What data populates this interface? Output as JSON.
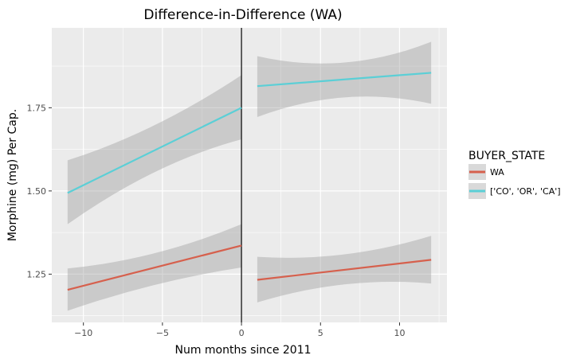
{
  "chart_data": {
    "type": "line",
    "title": "Difference-in-Difference (WA)",
    "xlabel": "Num months since 2011",
    "ylabel": "Morphine (mg) Per Cap.",
    "xlim": [
      -12,
      13
    ],
    "ylim": [
      1.105,
      1.99
    ],
    "x_ticks": [
      -10,
      -5,
      0,
      5,
      10
    ],
    "x_tick_labels": [
      "−10",
      "−5",
      "0",
      "5",
      "10"
    ],
    "y_ticks": [
      1.25,
      1.5,
      1.75
    ],
    "y_tick_labels": [
      "1.25",
      "1.50",
      "1.75"
    ],
    "grid": true,
    "vline_x": 0,
    "legend": {
      "title": "BUYER_STATE",
      "position": "right",
      "entries": [
        {
          "label": "WA",
          "color": "#d6604d"
        },
        {
          "label": "['CO', 'OR', 'CA']",
          "color": "#5bcfd6"
        }
      ]
    },
    "series": [
      {
        "name": "WA",
        "color": "#d6604d",
        "segments": [
          {
            "x": [
              -11,
              0
            ],
            "y": [
              1.203,
              1.336
            ],
            "ci_low_start": 1.14,
            "ci_low_mid": 1.23,
            "ci_low_end": 1.27,
            "ci_high_start": 1.267,
            "ci_high_mid": 1.292,
            "ci_high_end": 1.4
          },
          {
            "x": [
              1,
              12
            ],
            "y": [
              1.233,
              1.293
            ],
            "ci_low_start": 1.165,
            "ci_low_mid": 1.245,
            "ci_low_end": 1.222,
            "ci_high_start": 1.302,
            "ci_high_mid": 1.285,
            "ci_high_end": 1.365
          }
        ]
      },
      {
        "name": "['CO', 'OR', 'CA']",
        "color": "#5bcfd6",
        "segments": [
          {
            "x": [
              -11,
              0
            ],
            "y": [
              1.494,
              1.75
            ],
            "ci_low_start": 1.4,
            "ci_low_mid": 1.585,
            "ci_low_end": 1.655,
            "ci_high_start": 1.592,
            "ci_high_mid": 1.675,
            "ci_high_end": 1.848
          },
          {
            "x": [
              1,
              12
            ],
            "y": [
              1.815,
              1.855
            ],
            "ci_low_start": 1.722,
            "ci_low_mid": 1.82,
            "ci_low_end": 1.762,
            "ci_high_start": 1.905,
            "ci_high_mid": 1.845,
            "ci_high_end": 1.948
          }
        ]
      }
    ],
    "ci_color": "#999999"
  }
}
